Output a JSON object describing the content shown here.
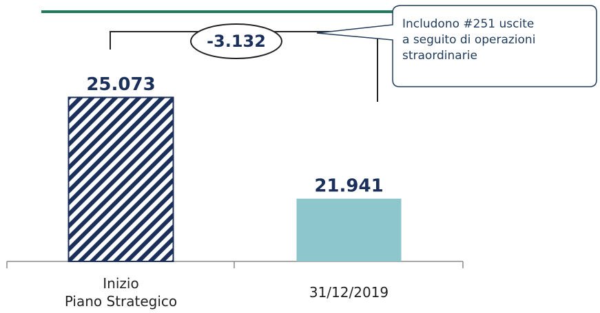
{
  "chart_data": {
    "type": "bar",
    "categories": [
      "Inizio\nPiano Strategico",
      "31/12/2019"
    ],
    "values": [
      25073,
      21941
    ],
    "value_labels": [
      "25.073",
      "21.941"
    ],
    "colors": [
      "#1b2f5b",
      "#8dc6cc"
    ],
    "hatch": [
      true,
      false
    ],
    "ylim": [
      20000,
      26000
    ],
    "annotations": [
      "-3.132",
      "Includono #251 uscite\na seguito di operazioni\nstraordinarie"
    ]
  }
}
